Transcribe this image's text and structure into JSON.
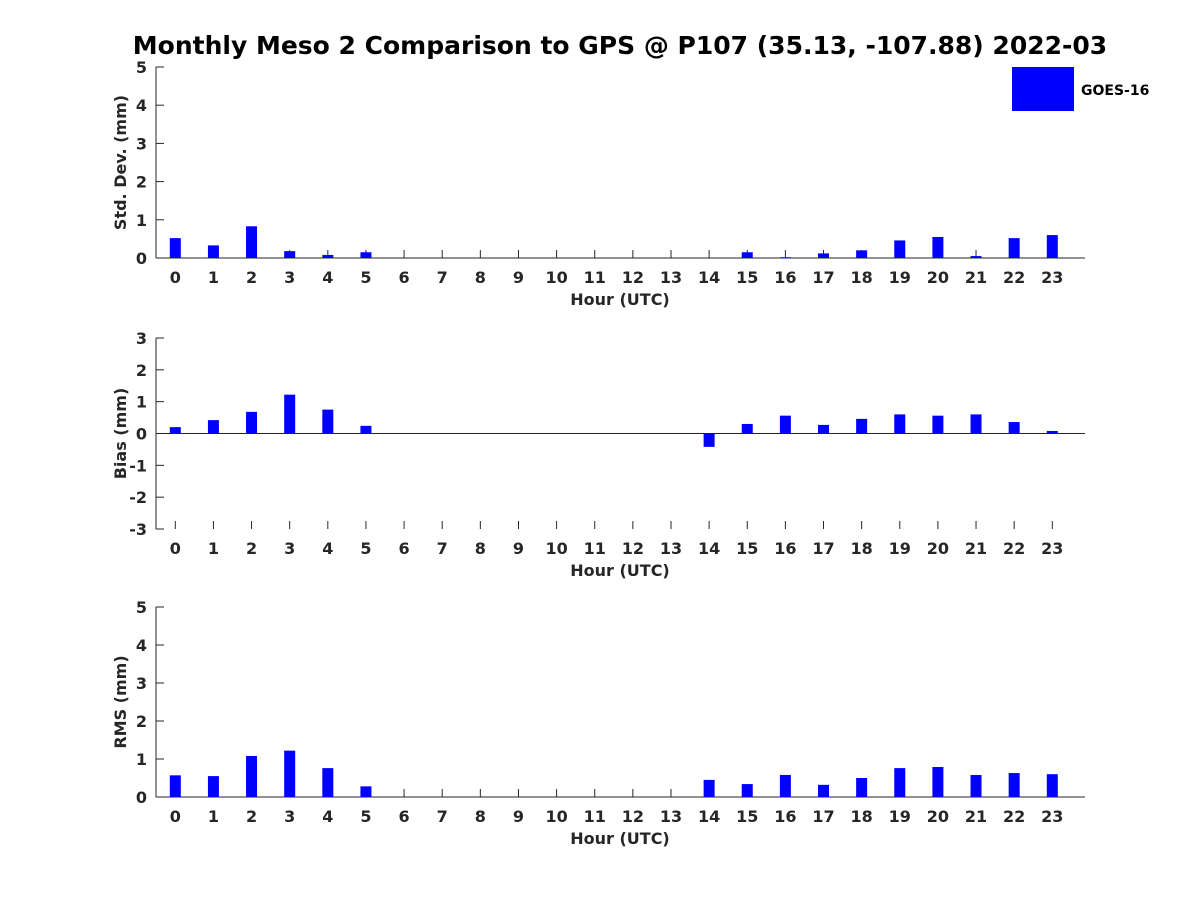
{
  "chart_data": [
    {
      "type": "bar",
      "title": "Monthly Meso 2 Comparison to GPS @ P107 (35.13, -107.88) 2022-03",
      "xlabel": "Hour (UTC)",
      "ylabel": "Std. Dev. (mm)",
      "ylim": [
        0,
        5
      ],
      "yticks": [
        "0",
        "1",
        "2",
        "3",
        "4",
        "5"
      ],
      "categories": [
        "0",
        "1",
        "2",
        "3",
        "4",
        "5",
        "6",
        "7",
        "8",
        "9",
        "10",
        "11",
        "12",
        "13",
        "14",
        "15",
        "16",
        "17",
        "18",
        "19",
        "20",
        "21",
        "22",
        "23"
      ],
      "series": [
        {
          "name": "GOES-16",
          "color": "#0000ff",
          "values": [
            0.52,
            0.33,
            0.83,
            0.18,
            0.08,
            0.15,
            null,
            null,
            null,
            null,
            null,
            null,
            null,
            null,
            null,
            0.15,
            0.02,
            0.12,
            0.2,
            0.46,
            0.55,
            0.05,
            0.52,
            0.6
          ]
        }
      ]
    },
    {
      "type": "bar",
      "xlabel": "Hour (UTC)",
      "ylabel": "Bias (mm)",
      "ylim": [
        -3,
        3
      ],
      "yticks": [
        "-3",
        "-2",
        "-1",
        "0",
        "1",
        "2",
        "3"
      ],
      "categories": [
        "0",
        "1",
        "2",
        "3",
        "4",
        "5",
        "6",
        "7",
        "8",
        "9",
        "10",
        "11",
        "12",
        "13",
        "14",
        "15",
        "16",
        "17",
        "18",
        "19",
        "20",
        "21",
        "22",
        "23"
      ],
      "series": [
        {
          "name": "GOES-16",
          "color": "#0000ff",
          "values": [
            0.2,
            0.42,
            0.68,
            1.22,
            0.75,
            0.24,
            null,
            null,
            null,
            null,
            null,
            null,
            null,
            null,
            -0.42,
            0.3,
            0.56,
            0.27,
            0.46,
            0.6,
            0.56,
            0.6,
            0.36,
            0.08
          ]
        }
      ]
    },
    {
      "type": "bar",
      "xlabel": "Hour (UTC)",
      "ylabel": "RMS (mm)",
      "ylim": [
        0,
        5
      ],
      "yticks": [
        "0",
        "1",
        "2",
        "3",
        "4",
        "5"
      ],
      "categories": [
        "0",
        "1",
        "2",
        "3",
        "4",
        "5",
        "6",
        "7",
        "8",
        "9",
        "10",
        "11",
        "12",
        "13",
        "14",
        "15",
        "16",
        "17",
        "18",
        "19",
        "20",
        "21",
        "22",
        "23"
      ],
      "series": [
        {
          "name": "GOES-16",
          "color": "#0000ff",
          "values": [
            0.57,
            0.55,
            1.08,
            1.22,
            0.76,
            0.28,
            null,
            null,
            null,
            null,
            null,
            null,
            null,
            null,
            0.45,
            0.34,
            0.58,
            0.32,
            0.5,
            0.76,
            0.79,
            0.58,
            0.63,
            0.6
          ]
        }
      ]
    }
  ],
  "legend": {
    "label": "GOES-16",
    "color": "#0000ff",
    "placement": "top-right"
  }
}
